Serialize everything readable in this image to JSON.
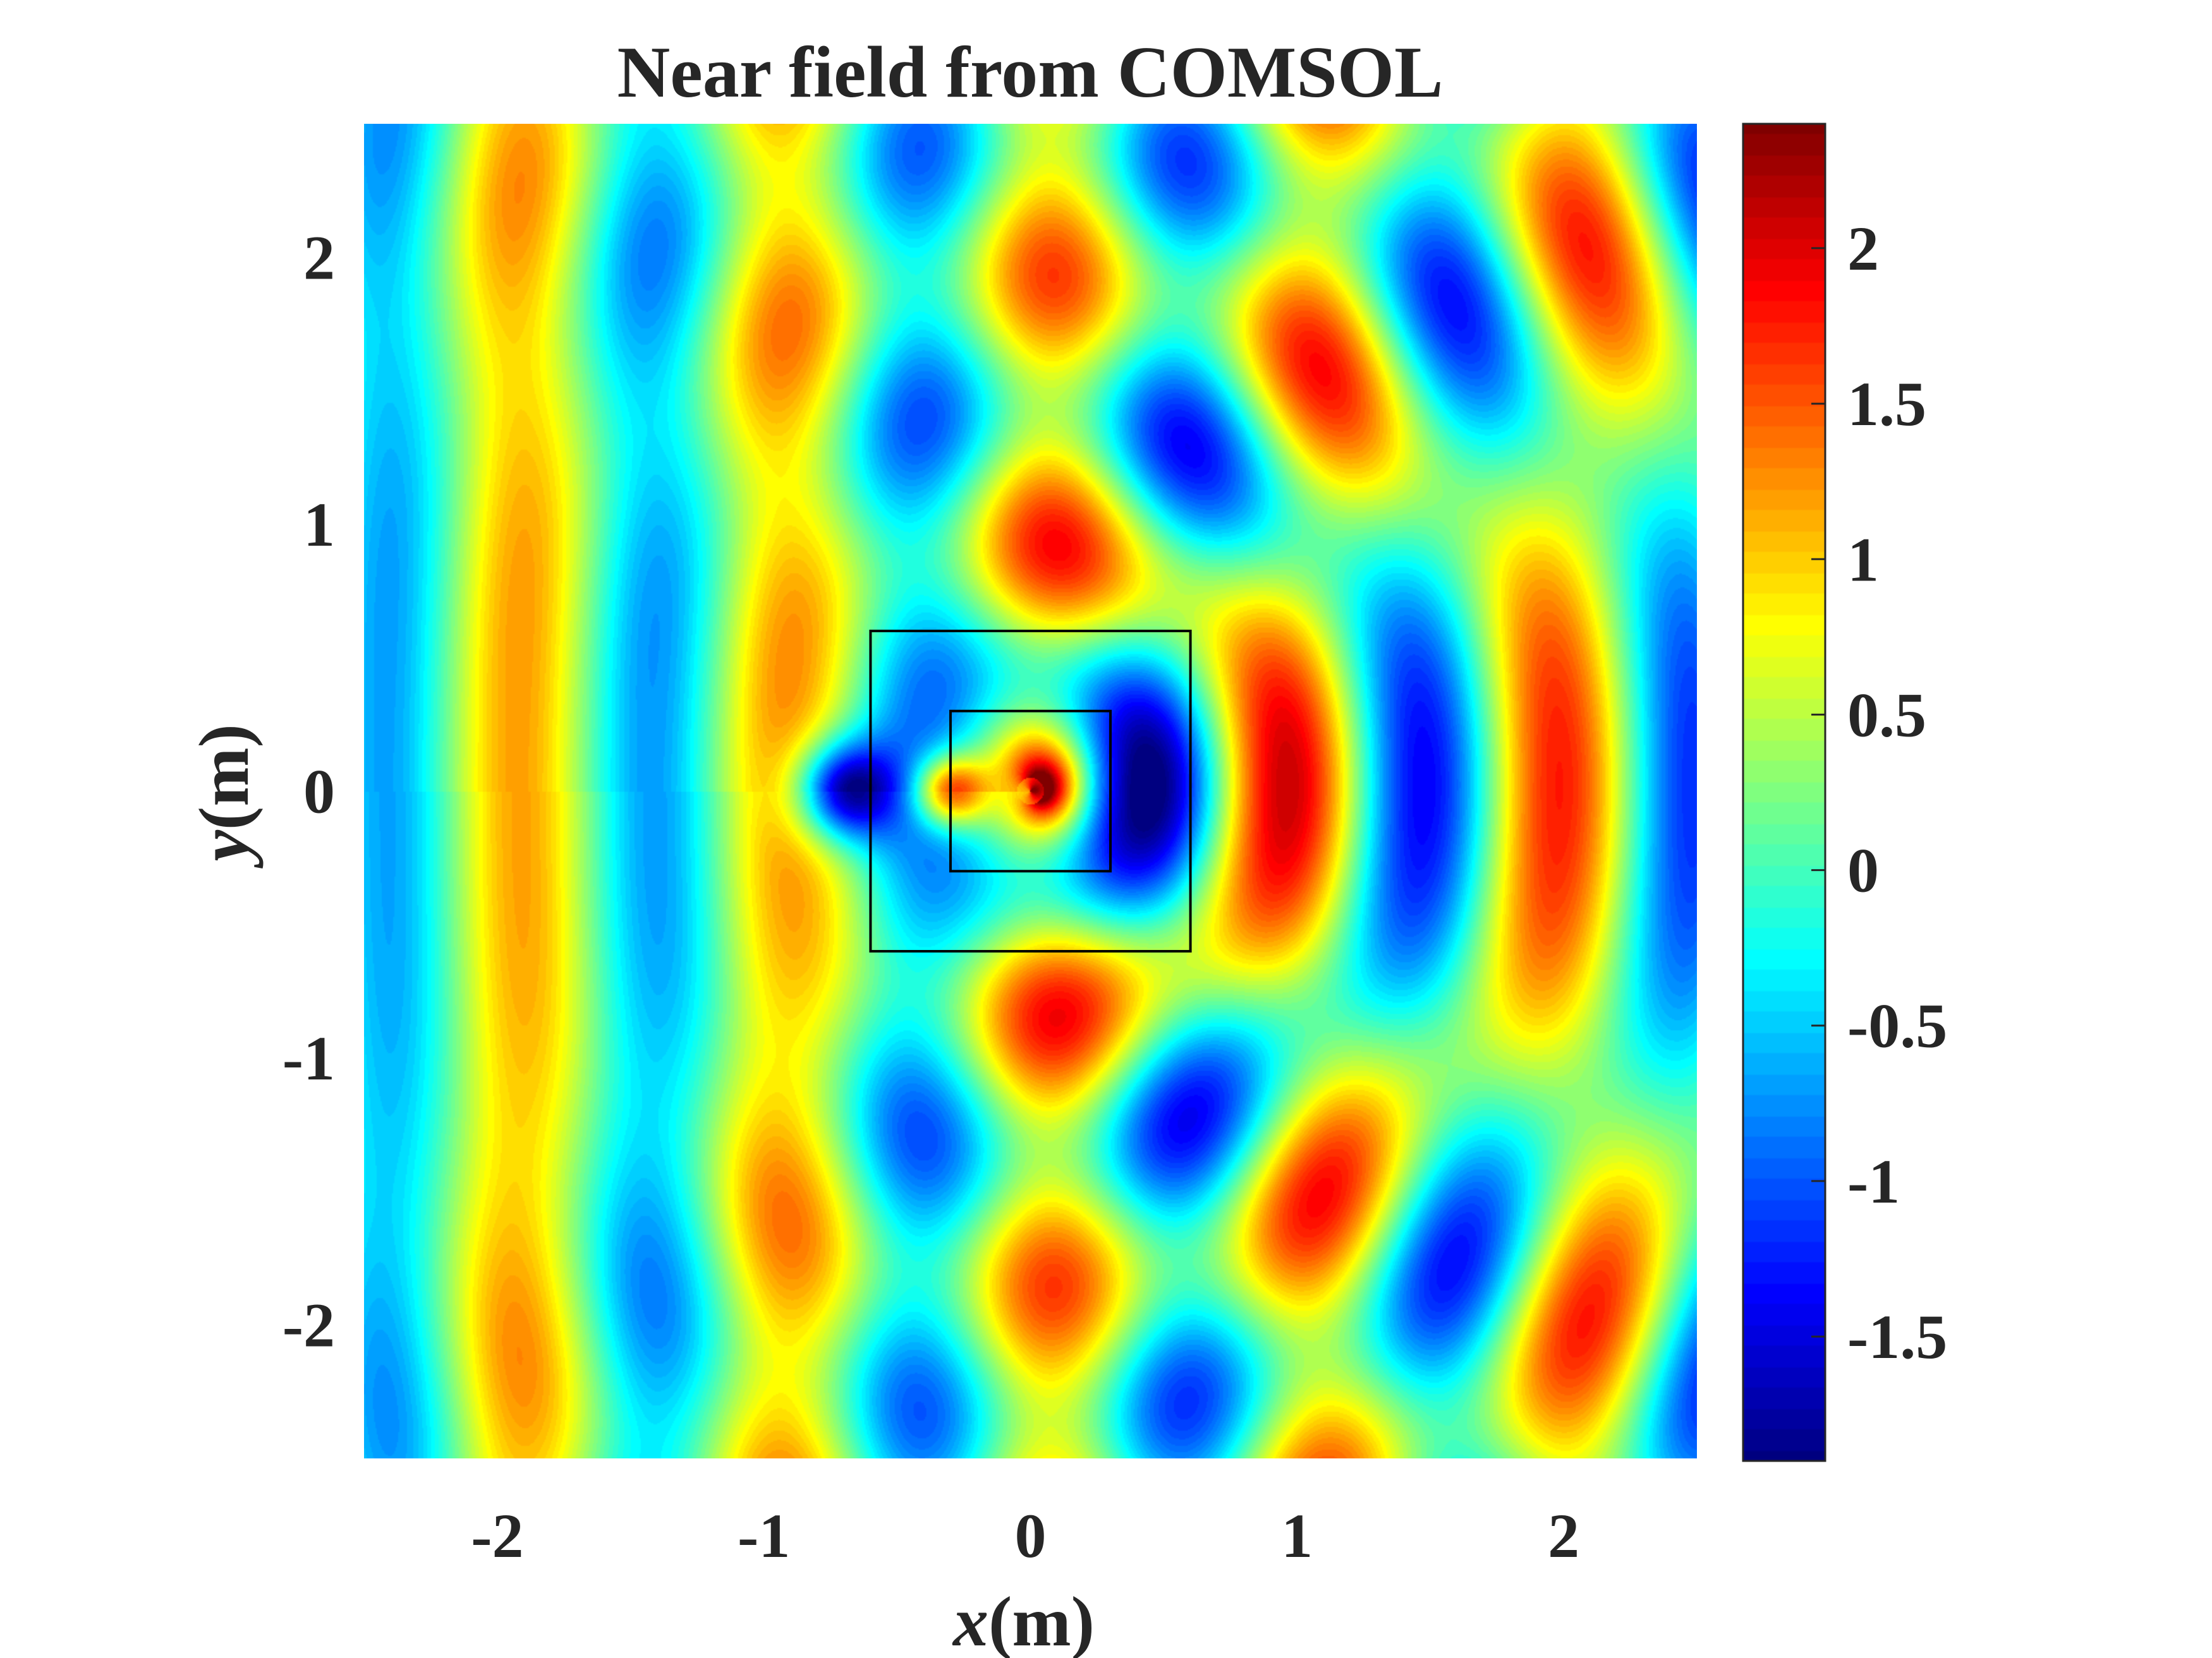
{
  "chart_data": {
    "type": "heatmap",
    "title": "Near field from COMSOL",
    "xlabel": {
      "var": "x",
      "unit": "(m)"
    },
    "ylabel": {
      "var": "y",
      "unit": "(m)"
    },
    "xlim": [
      -2.5,
      2.5
    ],
    "ylim": [
      -2.5,
      2.5
    ],
    "xticks": [
      -2,
      -1,
      0,
      1,
      2
    ],
    "xtick_labels": [
      "-2",
      "-1",
      "0",
      "1",
      "2"
    ],
    "yticks": [
      -2,
      -1,
      0,
      1,
      2
    ],
    "ytick_labels": [
      "-2",
      "-1",
      "0",
      "1",
      "2"
    ],
    "colormap": "jet",
    "clim": [
      -1.9,
      2.4
    ],
    "colorbar_ticks": [
      2,
      1.5,
      1,
      0.5,
      0,
      -0.5,
      -1,
      -1.5
    ],
    "colorbar_tick_labels": [
      "2",
      "1.5",
      "1",
      "0.5",
      "0",
      "-0.5",
      "-1",
      "-1.5"
    ],
    "wavelength_m": 1.0,
    "incident_direction": "+x",
    "scatterer_center": [
      0,
      0
    ],
    "boxes": [
      {
        "name": "outer-box",
        "x": [
          -0.6,
          0.6
        ],
        "y": [
          -0.6,
          0.6
        ]
      },
      {
        "name": "inner-box",
        "x": [
          -0.3,
          0.3
        ],
        "y": [
          -0.3,
          0.3
        ]
      }
    ],
    "grid": false,
    "legend": "none"
  }
}
